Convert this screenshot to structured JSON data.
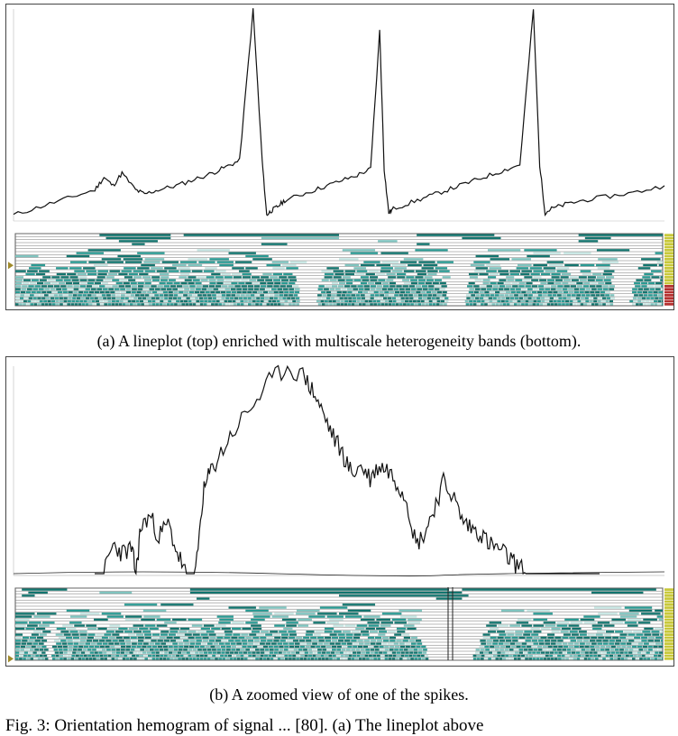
{
  "figure": {
    "caption_a": "(a) A lineplot (top) enriched with multiscale heterogeneity bands (bottom).",
    "caption_b": "(b) A zoomed view of one of the spikes.",
    "fig_text_partial": "Fig. 3: Orientation hemogram of signal ... [80]. (a) The lineplot above"
  },
  "colors": {
    "line": "#111111",
    "band_dark": "#13756f",
    "band_mid": "#2a9a93",
    "band_light": "#7fc4bf",
    "band_pale": "#c6e6e3",
    "scale_yellow": "#c8c83a",
    "scale_red": "#b5302f",
    "marker": "#a08a2a"
  },
  "chart_data": [
    {
      "type": "line",
      "panel": "a",
      "description_points_x": [
        0,
        30,
        60,
        90,
        100,
        110,
        120,
        135,
        145,
        160,
        180,
        200,
        220,
        235,
        250,
        265,
        275,
        280,
        285,
        292,
        300,
        320,
        340,
        360,
        380,
        395,
        405,
        410,
        415,
        420,
        440,
        460,
        480,
        500,
        520,
        540,
        560,
        575,
        582,
        588,
        595,
        610,
        630,
        660,
        690,
        720
      ],
      "description_points_y": [
        2,
        6,
        10,
        14,
        20,
        16,
        22,
        14,
        12,
        14,
        16,
        19,
        22,
        25,
        28,
        100,
        28,
        2,
        4,
        6,
        9,
        12,
        15,
        18,
        21,
        24,
        90,
        24,
        3,
        5,
        8,
        11,
        14,
        17,
        20,
        23,
        26,
        100,
        26,
        3,
        5,
        7,
        9,
        11,
        13,
        16
      ],
      "xlim": [
        0,
        720
      ],
      "ylim": [
        0,
        100
      ]
    },
    {
      "type": "line",
      "panel": "b",
      "description_points_x": [
        0,
        10,
        20,
        30,
        40,
        45,
        50,
        60,
        70,
        80,
        90,
        100,
        110,
        118,
        125,
        135,
        150,
        170,
        190,
        210,
        230,
        240,
        250,
        260,
        270,
        280,
        290,
        300,
        310,
        320,
        330,
        340,
        350,
        360,
        370,
        380,
        390,
        400,
        410,
        420,
        430,
        440,
        450,
        460,
        470,
        480,
        490,
        500,
        510,
        520,
        530,
        540,
        550
      ],
      "description_points_y": [
        0,
        0,
        14,
        10,
        12,
        0,
        22,
        28,
        18,
        24,
        10,
        0,
        0,
        38,
        48,
        56,
        68,
        80,
        92,
        100,
        94,
        86,
        76,
        66,
        58,
        48,
        52,
        46,
        52,
        50,
        44,
        36,
        14,
        20,
        32,
        44,
        38,
        26,
        22,
        20,
        14,
        12,
        8,
        4,
        0,
        0,
        0,
        0,
        0,
        0,
        0,
        0,
        0
      ],
      "xlim": [
        0,
        550
      ],
      "ylim": [
        0,
        100
      ]
    }
  ]
}
